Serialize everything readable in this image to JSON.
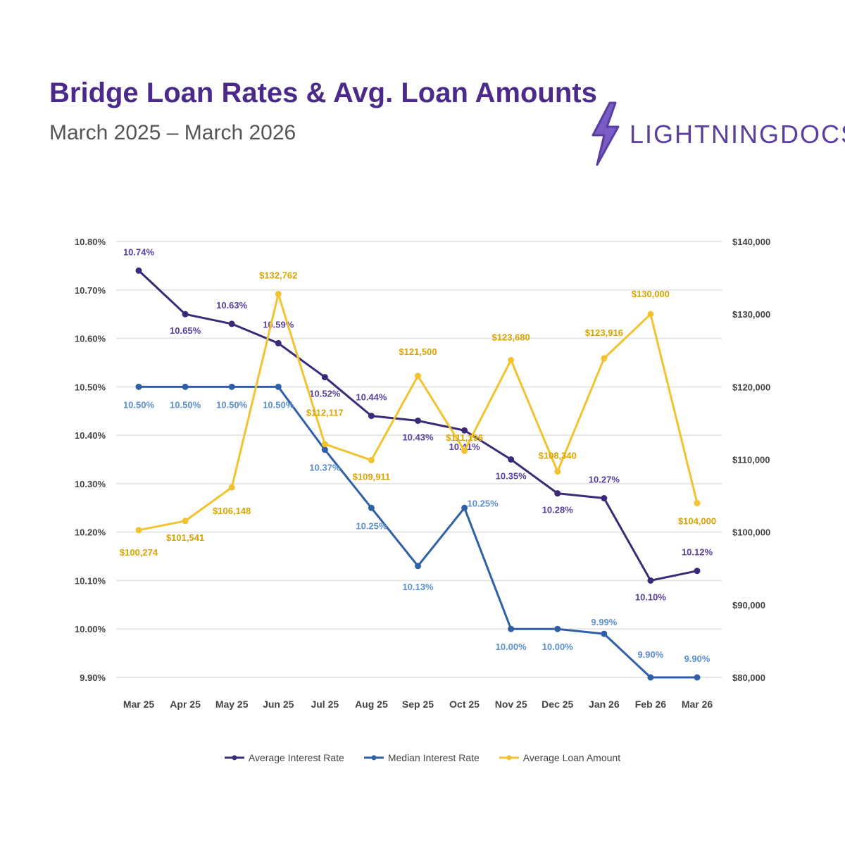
{
  "header": {
    "title": "Bridge Loan Rates & Avg. Loan Amounts",
    "subtitle": "March 2025 – March 2026",
    "logo_text": "LIGHTNINGDOCS"
  },
  "colors": {
    "title": "#4b2a8c",
    "avg_rate": "#3b2a78",
    "median_rate": "#2f5fa8",
    "avg_amount": "#f2c230",
    "grid": "#e6e6e6",
    "logo": "#5a3fa0"
  },
  "chart_data": {
    "type": "line",
    "categories": [
      "Mar 25",
      "Apr 25",
      "May 25",
      "Jun 25",
      "Jul 25",
      "Aug 25",
      "Sep 25",
      "Oct 25",
      "Nov 25",
      "Dec 25",
      "Jan 26",
      "Feb 26",
      "Mar 26"
    ],
    "y_left": {
      "ticks": [
        "9.90%",
        "10.00%",
        "10.10%",
        "10.20%",
        "10.30%",
        "10.40%",
        "10.50%",
        "10.60%",
        "10.70%",
        "10.80%"
      ],
      "lim": [
        9.9,
        10.8
      ]
    },
    "y_right": {
      "ticks": [
        "$80,000",
        "$90,000",
        "$100,000",
        "$110,000",
        "$120,000",
        "$130,000",
        "$140,000"
      ],
      "lim": [
        80000,
        140000
      ]
    },
    "series": [
      {
        "name": "Average Interest Rate",
        "axis": "left",
        "values": [
          10.74,
          10.65,
          10.63,
          10.59,
          10.52,
          10.44,
          10.43,
          10.41,
          10.35,
          10.28,
          10.27,
          10.1,
          10.12
        ],
        "labels": [
          "10.74%",
          "10.65%",
          "10.63%",
          "10.59%",
          "10.52%",
          "10.44%",
          "10.43%",
          "10.41%",
          "10.35%",
          "10.28%",
          "10.27%",
          "10.10%",
          "10.12%"
        ]
      },
      {
        "name": "Median Interest Rate",
        "axis": "left",
        "values": [
          10.5,
          10.5,
          10.5,
          10.5,
          10.37,
          10.25,
          10.13,
          10.25,
          10.0,
          10.0,
          9.99,
          9.9,
          9.9
        ],
        "labels": [
          "10.50%",
          "10.50%",
          "10.50%",
          "10.50%",
          "10.37%",
          "10.25%",
          "10.13%",
          "10.25%",
          "10.00%",
          "10.00%",
          "9.99%",
          "9.90%",
          "9.90%"
        ]
      },
      {
        "name": "Average Loan Amount",
        "axis": "right",
        "values": [
          100274,
          101541,
          106148,
          132762,
          112117,
          109911,
          121500,
          111196,
          123680,
          108340,
          123916,
          130000,
          104000
        ],
        "labels": [
          "$100,274",
          "$101,541",
          "$106,148",
          "$132,762",
          "$112,117",
          "$109,911",
          "$121,500",
          "$111,196",
          "$123,680",
          "$108,340",
          "$123,916",
          "$130,000",
          "$104,000"
        ]
      }
    ]
  }
}
